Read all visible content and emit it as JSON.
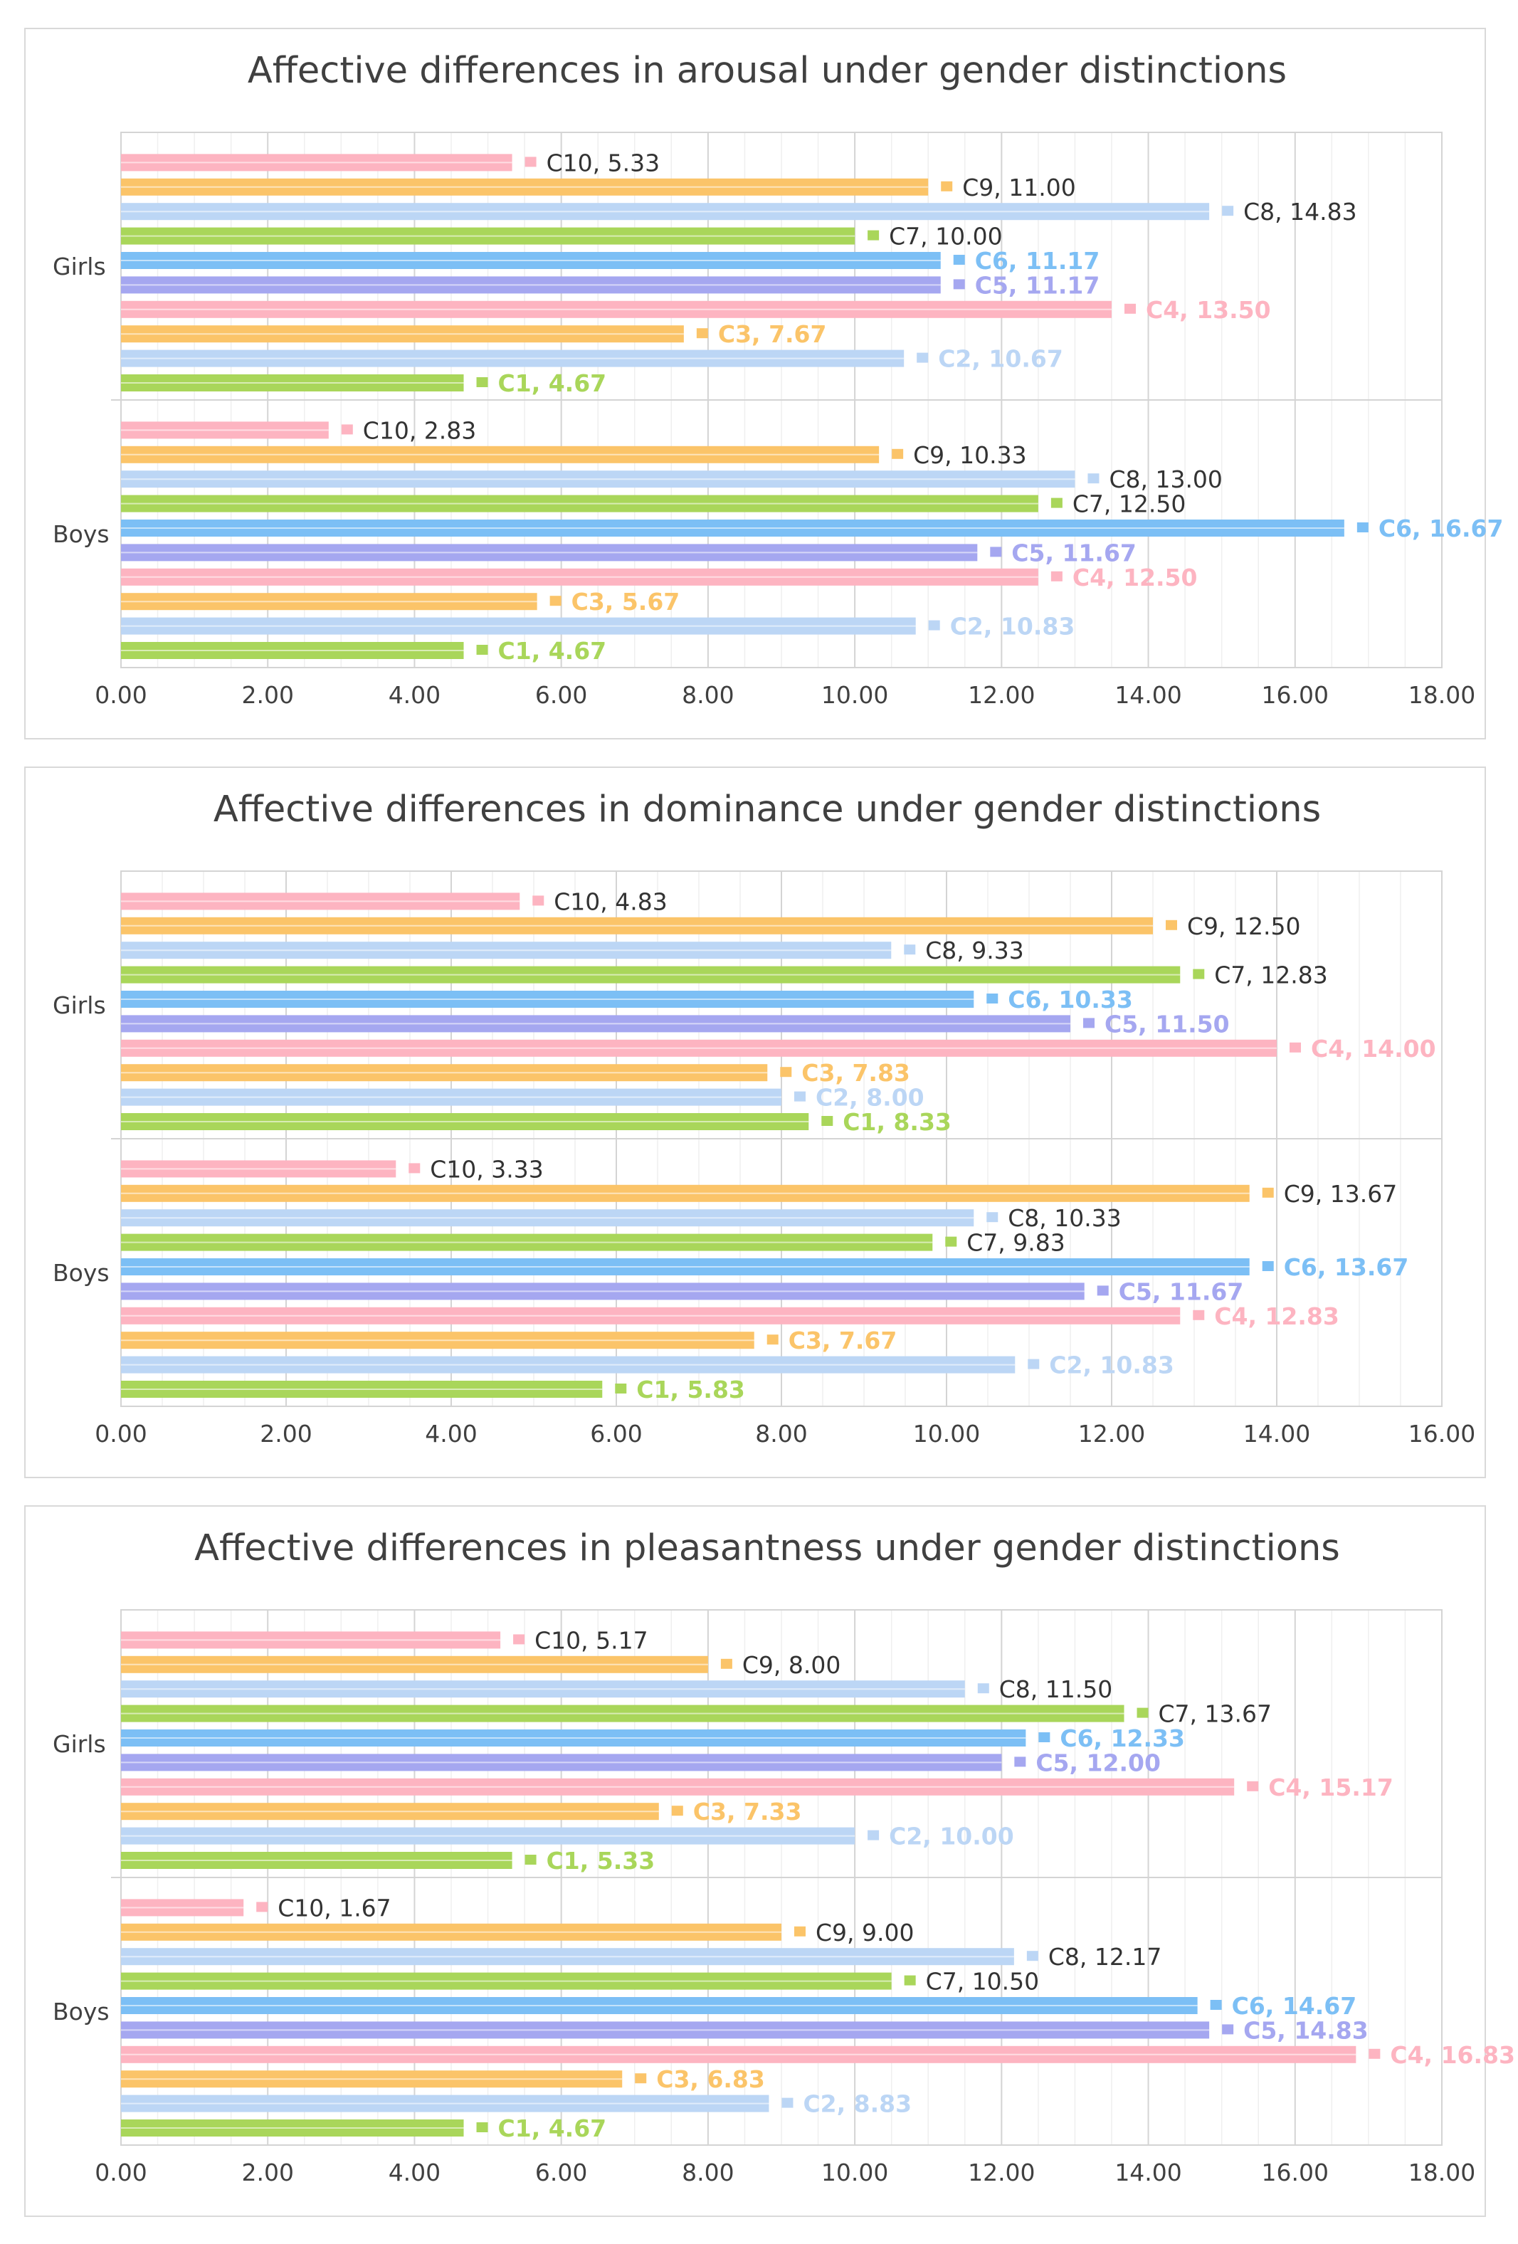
{
  "chart_data": [
    {
      "type": "bar",
      "orientation": "horizontal",
      "title": "Affective differences in arousal under gender distinctions",
      "categories": [
        "Boys",
        "Girls"
      ],
      "xlim": [
        0,
        18
      ],
      "xticks": [
        0,
        2,
        4,
        6,
        8,
        10,
        12,
        14,
        16,
        18
      ],
      "tick_format": "0.00",
      "grid": true,
      "series": [
        {
          "name": "C1",
          "values": [
            4.67,
            4.67
          ]
        },
        {
          "name": "C2",
          "values": [
            10.83,
            10.67
          ]
        },
        {
          "name": "C3",
          "values": [
            5.67,
            7.67
          ]
        },
        {
          "name": "C4",
          "values": [
            12.5,
            13.5
          ]
        },
        {
          "name": "C5",
          "values": [
            11.67,
            11.17
          ]
        },
        {
          "name": "C6",
          "values": [
            16.67,
            11.17
          ]
        },
        {
          "name": "C7",
          "values": [
            12.5,
            10.0
          ]
        },
        {
          "name": "C8",
          "values": [
            13.0,
            14.83
          ]
        },
        {
          "name": "C9",
          "values": [
            10.33,
            11.0
          ]
        },
        {
          "name": "C10",
          "values": [
            2.83,
            5.33
          ]
        }
      ]
    },
    {
      "type": "bar",
      "orientation": "horizontal",
      "title": "Affective differences in  dominance under gender distinctions",
      "categories": [
        "Boys",
        "Girls"
      ],
      "xlim": [
        0,
        16
      ],
      "xticks": [
        0,
        2,
        4,
        6,
        8,
        10,
        12,
        14,
        16
      ],
      "tick_format": "0.00",
      "grid": true,
      "series": [
        {
          "name": "C1",
          "values": [
            5.83,
            8.33
          ]
        },
        {
          "name": "C2",
          "values": [
            10.83,
            8.0
          ]
        },
        {
          "name": "C3",
          "values": [
            7.67,
            7.83
          ]
        },
        {
          "name": "C4",
          "values": [
            12.83,
            14.0
          ]
        },
        {
          "name": "C5",
          "values": [
            11.67,
            11.5
          ]
        },
        {
          "name": "C6",
          "values": [
            13.67,
            10.33
          ]
        },
        {
          "name": "C7",
          "values": [
            9.83,
            12.83
          ]
        },
        {
          "name": "C8",
          "values": [
            10.33,
            9.33
          ]
        },
        {
          "name": "C9",
          "values": [
            13.67,
            12.5
          ]
        },
        {
          "name": "C10",
          "values": [
            3.33,
            4.83
          ]
        }
      ]
    },
    {
      "type": "bar",
      "orientation": "horizontal",
      "title": "Affective differences in pleasantness under gender distinctions",
      "categories": [
        "Boys",
        "Girls"
      ],
      "xlim": [
        0,
        18
      ],
      "xticks": [
        0,
        2,
        4,
        6,
        8,
        10,
        12,
        14,
        16,
        18
      ],
      "tick_format": "0.00",
      "grid": true,
      "series": [
        {
          "name": "C1",
          "values": [
            4.67,
            5.33
          ]
        },
        {
          "name": "C2",
          "values": [
            8.83,
            10.0
          ]
        },
        {
          "name": "C3",
          "values": [
            6.83,
            7.33
          ]
        },
        {
          "name": "C4",
          "values": [
            16.83,
            15.17
          ]
        },
        {
          "name": "C5",
          "values": [
            14.83,
            12.0
          ]
        },
        {
          "name": "C6",
          "values": [
            14.67,
            12.33
          ]
        },
        {
          "name": "C7",
          "values": [
            10.5,
            13.67
          ]
        },
        {
          "name": "C8",
          "values": [
            12.17,
            11.5
          ]
        },
        {
          "name": "C9",
          "values": [
            9.0,
            8.0
          ]
        },
        {
          "name": "C10",
          "values": [
            1.67,
            5.17
          ]
        }
      ]
    }
  ],
  "colors": {
    "series": [
      "#a9d65a",
      "#bcd6f5",
      "#fbc469",
      "#fdb4c1",
      "#a5a7f0",
      "#7cbff5",
      "#a9d65a",
      "#bcd6f5",
      "#fbc469",
      "#fdb4c1"
    ],
    "label_dark": "#333333",
    "grid": "#e3e3e3",
    "axis_text": "#404040"
  }
}
